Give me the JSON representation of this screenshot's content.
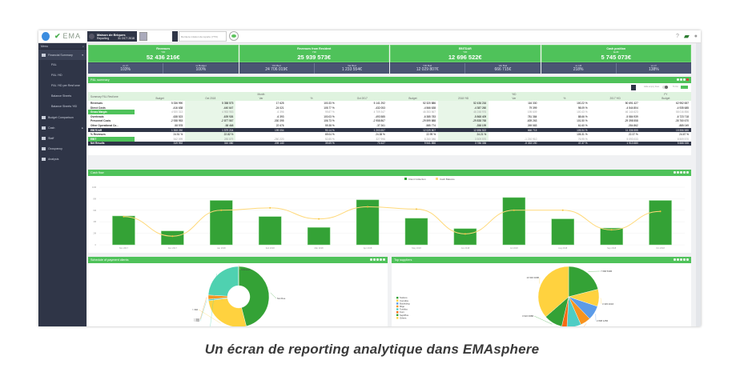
{
  "topbar": {
    "logo": "EMA",
    "logo_sub": "SPHERE",
    "company_name": "Maison de Briques",
    "company_sub": "Reporting",
    "company_date": "31 OCT 2018",
    "search_placeholder": "Derniere mission de reporte (YTD)"
  },
  "sidebar": {
    "menu_label": "Menu",
    "items": [
      {
        "label": "Financial Summary",
        "icon": "chart-icon",
        "active": true
      },
      {
        "label": "P&L",
        "sub": true
      },
      {
        "label": "P&L YtD",
        "sub": true
      },
      {
        "label": "P&L YtD per Rest'ome",
        "sub": true
      },
      {
        "label": "Balance Sheets",
        "sub": true
      },
      {
        "label": "Balance Sheets YtD",
        "sub": true
      },
      {
        "label": "Budget Comparison",
        "icon": "budget-icon"
      },
      {
        "label": "Cash",
        "icon": "cash-icon"
      },
      {
        "label": "Staff",
        "icon": "staff-icon"
      },
      {
        "label": "Occupancy",
        "icon": "gear-icon"
      },
      {
        "label": "Analysis",
        "icon": "analysis-icon"
      }
    ]
  },
  "kpis": [
    {
      "title": "Revenues",
      "sub": "YtD",
      "value": "52 436 216€",
      "cells": [
        {
          "label": "vs LY",
          "value": "103%"
        },
        {
          "label": "vs Budget",
          "value": "100%"
        }
      ]
    },
    {
      "title": "Revenues from Resident",
      "sub": "YtD",
      "value": "25 939 573€",
      "cells": [
        {
          "label": "YtD Bud",
          "value": "24 706 019€"
        },
        {
          "label": "Var Bud",
          "value": "1 233 554€"
        }
      ]
    },
    {
      "title": "EBITDAR",
      "sub": "YtD",
      "value": "12 696 522€",
      "cells": [
        {
          "label": "YtD Bud",
          "value": "12 029 807€"
        },
        {
          "label": "Var Bud",
          "value": "666 715€"
        }
      ]
    },
    {
      "title": "Cash position",
      "sub": "EoM",
      "value": "5 745 073€",
      "cells": [
        {
          "label": "vs LM",
          "value": "218%"
        },
        {
          "label": "vs LY",
          "value": "138%"
        }
      ]
    }
  ],
  "pnl": {
    "title": "P&L summary",
    "hide_label": "Hide empty lines",
    "toggle_label": "To Do",
    "group_headers": [
      "Month",
      "YtD",
      "FY"
    ],
    "row_header": "Summary P&L Rest'ome",
    "columns": [
      "Budget",
      "Oct 2018",
      "Var",
      "%",
      "Oct 2017",
      "Budget",
      "2018 YtD",
      "Var",
      "%",
      "2017 YtD",
      "Budget"
    ],
    "rows": [
      {
        "label": "Revenues",
        "type": "normal",
        "values": [
          "5 336 990",
          "5 358 575",
          "17 625",
          "100.33 %",
          "5 141 292",
          "52 320 886",
          "52 436 216",
          "116 330",
          "100.22 %",
          "50 691 427",
          "62 952 657"
        ]
      },
      {
        "label": "Direct Costs",
        "type": "normal",
        "values": [
          "-416 638",
          "-440 647",
          "-24 021",
          "105.77 %",
          "-432 053",
          "-4 566 638",
          "-4 387 260",
          "79 399",
          "98.09 %",
          "-4 544 804",
          "-4 935 685"
        ]
      },
      {
        "label": "Gross Margin",
        "type": "hl",
        "values": [
          "4 920 313",
          "4 953 953",
          "-6 396",
          "99.87 %",
          "4 709 347",
          "46 353 567",
          "46 248 976",
          "195 609",
          "100.43 %",
          "46 144 623",
          "58 016 856"
        ]
      },
      {
        "label": "Overheads",
        "type": "normal",
        "values": [
          "-638 523",
          "-639 926",
          "-6 393",
          "100.03 %",
          "-493 585",
          "-6 385 783",
          "-5 868 409",
          "781 384",
          "88.66 %",
          "-5 584 939",
          "-6 723 718"
        ]
      },
      {
        "label": "Personnel Costs",
        "type": "normal",
        "values": [
          "-2 938 953",
          "-2 877 567",
          "-330 395",
          "106.73 %",
          "-2 958 867",
          "-29 599 888",
          "-29 838 765",
          "-639 263",
          "101.50 %",
          "-29 398 558",
          "-35 760 670"
        ]
      },
      {
        "label": "Other Operational Co...",
        "type": "normal",
        "values": [
          "-58 578",
          "-58 468",
          "22 676",
          "59.38 %",
          "-37 261",
          "-585 774",
          "-358 199",
          "269 583",
          "61.60 %",
          "-354 862",
          "-885 049"
        ]
      },
      {
        "label": "EBITDAR",
        "type": "dark",
        "values": [
          "1 308 250",
          "1 579 204",
          "199 054",
          "90.14 %",
          "1 203 657",
          "12 029 807",
          "12 696 522",
          "666 715",
          "105.54 %",
          "11 336 555",
          "15 556 585"
        ]
      },
      {
        "label": "% Revenues",
        "type": "normal",
        "values": [
          "24.51 %",
          "22.82 %",
          "",
          "69.04 %",
          "24.38 %",
          "22.99 %",
          "24.21 %",
          "",
          "105.31 %",
          "22.37 %",
          "24.67 %"
        ]
      },
      {
        "label": "EBIT",
        "type": "hl",
        "values": [
          "542 099",
          "285 879",
          "-260 220",
          "52.85 %",
          "327 996",
          "8 260 086",
          "3 509 570",
          "-1 210 910",
          "76.95 %",
          "5 093 033",
          "8 509 570"
        ]
      },
      {
        "label": "Net Results",
        "type": "dark",
        "values": "319 992,310 080,209 140,39.69 %,73 427,9 541 856,3 786 336,-5 333 190,47.37 %,1 913 680,5 666 335"
      }
    ]
  },
  "cashflow": {
    "title": "Cash flow",
    "legend": [
      "Client Collection",
      "Cash Balance"
    ]
  },
  "chart_data": [
    {
      "type": "bar",
      "title": "Cash flow",
      "categories": [
        "Nov 2017",
        "Dec 2017",
        "Jan 2018",
        "Feb 2018",
        "Mar 2018",
        "Apr 2018",
        "May 2018",
        "Jun 2018",
        "Jul 2018",
        "Aug 2018",
        "Sep 2018",
        "Oct 2018"
      ],
      "series": [
        {
          "name": "Client Collection",
          "type": "bar",
          "color": "#34a236",
          "values": [
            5.0,
            2.4,
            7.7,
            4.9,
            3.0,
            7.8,
            4.6,
            2.8,
            8.2,
            4.5,
            2.9,
            7.7
          ]
        },
        {
          "name": "Cash Balance",
          "type": "line",
          "color": "#ffd97a",
          "values": [
            4.9,
            1.5,
            6.0,
            6.4,
            4.5,
            6.6,
            6.2,
            1.9,
            6.0,
            6.0,
            2.6,
            5.8
          ]
        }
      ],
      "yticks": [
        "0",
        "2M",
        "4M",
        "6M",
        "8M",
        "10M"
      ],
      "ylim": [
        0,
        10
      ],
      "legend_position": "top-center"
    },
    {
      "type": "pie",
      "title": "Schedule of payment clients",
      "donut": true,
      "labels": [
        "Not Due",
        "> 30d",
        "> 60d",
        "> 90d",
        "> 90d",
        "Unknown"
      ],
      "values": [
        46,
        27,
        0.8,
        2.2,
        24,
        0.1
      ],
      "colors": [
        "#34a236",
        "#ffd23f",
        "#4ecdc4",
        "#f7931e",
        "#4fd1b0",
        "#f4a261"
      ]
    },
    {
      "type": "pie",
      "title": "Top suppliers",
      "legend": [
        "Sodexo",
        "Comdiss",
        "Bouleding",
        "Migo",
        "Toshiba",
        "Korn",
        "SepiPlus",
        "Others"
      ],
      "labels": [
        "7 668 530€",
        "3 345 401€",
        "2 808 125€",
        "2 027 200€",
        "2 728 452€",
        "1 022 290€",
        "3 622 938€",
        "13 316 023€"
      ],
      "values": [
        7668530,
        3345401,
        2808125,
        2027200,
        2728452,
        1022290,
        3622938,
        13316023
      ],
      "colors": [
        "#34a236",
        "#ffd23f",
        "#5b9be8",
        "#f7931e",
        "#4ecdc4",
        "#f76b15",
        "#34a236",
        "#ffd23f"
      ],
      "legend_position": "left"
    }
  ],
  "schedule": {
    "title": "Schedule of payment clients"
  },
  "suppliers": {
    "title": "Top suppliers"
  },
  "caption": "Un écran de reporting analytique dans EMAsphere"
}
